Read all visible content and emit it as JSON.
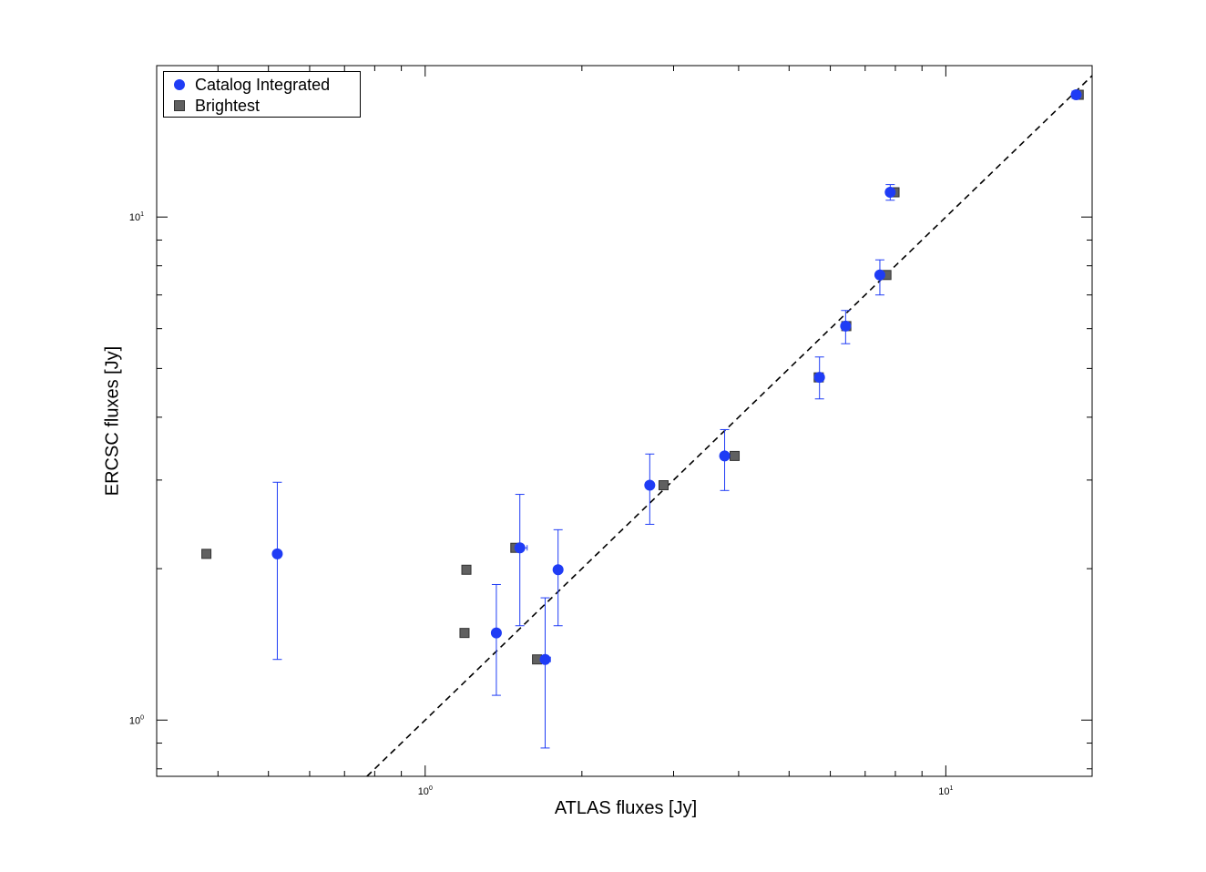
{
  "chart_data": {
    "type": "scatter",
    "title": "",
    "xlabel": "ATLAS fluxes [Jy]",
    "ylabel": "ERCSC fluxes [Jy]",
    "xscale": "log",
    "yscale": "log",
    "xlim": [
      0.305,
      19.1
    ],
    "ylim": [
      0.773,
      20.0
    ],
    "xticklabels": [
      {
        "base": "10",
        "exp": "0",
        "value": 1
      },
      {
        "base": "10",
        "exp": "1",
        "value": 10
      }
    ],
    "yticklabels": [
      {
        "base": "10",
        "exp": "0",
        "value": 1
      },
      {
        "base": "10",
        "exp": "1",
        "value": 10
      }
    ],
    "grid": false,
    "legend_position": "top-left",
    "reference_line": {
      "style": "dashed",
      "relation": "y = x",
      "color": "#000000"
    },
    "series": [
      {
        "name": "Catalog Integrated",
        "marker": "circle",
        "color": "#1f3cf5",
        "points": [
          {
            "x": 0.52,
            "y": 2.14,
            "ylo": 1.32,
            "yhi": 2.97
          },
          {
            "x": 1.37,
            "y": 1.49,
            "ylo": 1.12,
            "yhi": 1.86
          },
          {
            "x": 1.52,
            "y": 2.2,
            "ylo": 1.54,
            "yhi": 2.81,
            "xlo": 1.49,
            "xhi": 1.57
          },
          {
            "x": 1.7,
            "y": 1.32,
            "ylo": 0.88,
            "yhi": 1.75,
            "xlo": 1.68,
            "xhi": 1.74
          },
          {
            "x": 1.8,
            "y": 1.99,
            "ylo": 1.54,
            "yhi": 2.39
          },
          {
            "x": 2.7,
            "y": 2.93,
            "ylo": 2.45,
            "yhi": 3.38
          },
          {
            "x": 3.76,
            "y": 3.35,
            "ylo": 2.86,
            "yhi": 3.78
          },
          {
            "x": 5.72,
            "y": 4.8,
            "ylo": 4.35,
            "yhi": 5.27
          },
          {
            "x": 6.42,
            "y": 6.07,
            "ylo": 5.6,
            "yhi": 6.52
          },
          {
            "x": 7.47,
            "y": 7.67,
            "ylo": 7.0,
            "yhi": 8.22
          },
          {
            "x": 7.82,
            "y": 11.2,
            "ylo": 10.8,
            "yhi": 11.6
          },
          {
            "x": 17.8,
            "y": 17.5,
            "ylo": 17.2,
            "yhi": 17.8
          }
        ]
      },
      {
        "name": "Brightest",
        "marker": "square",
        "color": "#606060",
        "points": [
          {
            "x": 0.38,
            "y": 2.14
          },
          {
            "x": 1.2,
            "y": 1.99
          },
          {
            "x": 1.19,
            "y": 1.49
          },
          {
            "x": 1.49,
            "y": 2.2
          },
          {
            "x": 1.64,
            "y": 1.32
          },
          {
            "x": 2.87,
            "y": 2.93
          },
          {
            "x": 3.93,
            "y": 3.35
          },
          {
            "x": 5.7,
            "y": 4.8
          },
          {
            "x": 6.44,
            "y": 6.07
          },
          {
            "x": 7.69,
            "y": 7.67
          },
          {
            "x": 7.97,
            "y": 11.2
          },
          {
            "x": 18.0,
            "y": 17.5
          }
        ]
      }
    ]
  }
}
